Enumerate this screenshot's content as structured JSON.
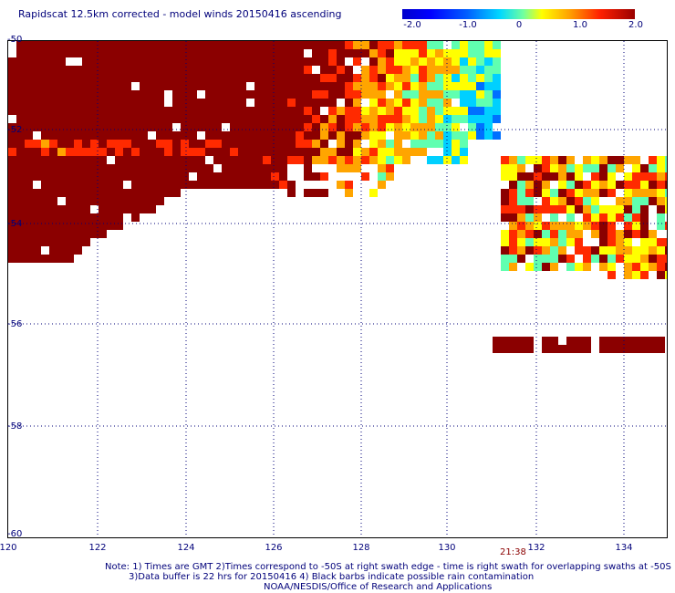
{
  "title": "Rapidscat 12.5km corrected - model winds 20150416 ascending",
  "colorbar": {
    "ticks": [
      {
        "label": "-2.0",
        "value": -2.0
      },
      {
        "label": "-1.0",
        "value": -1.0
      },
      {
        "label": "0",
        "value": 0
      },
      {
        "label": "1.0",
        "value": 1.0
      },
      {
        "label": "2.0",
        "value": 2.0
      }
    ]
  },
  "axes": {
    "x_ticks": [
      "120",
      "122",
      "124",
      "126",
      "128",
      "130",
      "132",
      "134"
    ],
    "y_ticks": [
      "-50",
      "-52",
      "-54",
      "-56",
      "-58",
      "-60"
    ],
    "x_range": [
      120,
      135
    ],
    "y_range": [
      -60,
      -50
    ]
  },
  "time_label": "21:38",
  "notes": {
    "line1": "Note: 1) Times are GMT 2)Times correspond to -50S at right swath edge - time is right swath for overlapping swaths at -50S",
    "line2": "3)Data buffer is 22 hrs for 20150416 4) Black barbs indicate possible rain contamination",
    "line3": "NOAA/NESDIS/Office of Research and Applications"
  },
  "map_data": {
    "value_range": [
      -2,
      2
    ],
    "colors": [
      "#00008b",
      "#0000ff",
      "#0070ff",
      "#00d0ff",
      "#60ffb0",
      "#ffff00",
      "#ffa500",
      "#ff2a00",
      "#8b0000"
    ]
  }
}
